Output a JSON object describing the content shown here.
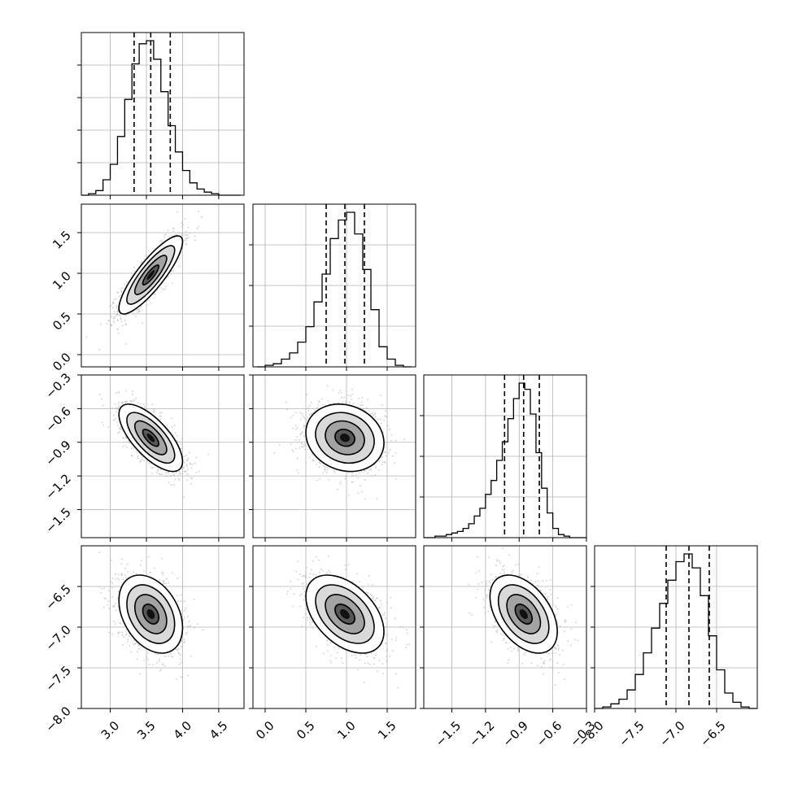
{
  "chart_data": {
    "type": "corner",
    "title": "",
    "grid": true,
    "n_params": 4,
    "params": [
      {
        "xlim": [
          2.6,
          4.85
        ],
        "ylim": [
          0,
          1.0
        ],
        "xticks": [
          "3.0",
          "3.5",
          "4.0",
          "4.5"
        ],
        "xtick_values": [
          3.0,
          3.5,
          4.0,
          4.5
        ],
        "hist_yticks": 4,
        "quantiles": [
          3.33,
          3.56,
          3.83
        ],
        "mean": 3.56,
        "sd": 0.22
      },
      {
        "xlim": [
          -0.15,
          1.85
        ],
        "ylim": [
          -0.15,
          1.85
        ],
        "xticks": [
          "0.0",
          "0.5",
          "1.0",
          "1.5"
        ],
        "xtick_values": [
          0.0,
          0.5,
          1.0,
          1.5
        ],
        "yticks": [
          "0.0",
          "0.5",
          "1.0",
          "1.5"
        ],
        "ytick_values": [
          0.0,
          0.5,
          1.0,
          1.5
        ],
        "hist_yticks": 3,
        "quantiles": [
          0.75,
          0.98,
          1.22
        ],
        "mean": 0.98,
        "sd": 0.24
      },
      {
        "xlim": [
          -1.75,
          -0.3
        ],
        "ylim": [
          -1.75,
          -0.3
        ],
        "xticks": [
          "−1.5",
          "−1.2",
          "−0.9",
          "−0.6",
          "−0.3"
        ],
        "xtick_values": [
          -1.5,
          -1.2,
          -0.9,
          -0.6,
          -0.3
        ],
        "yticks": [
          "−0.3",
          "−0.6",
          "−0.9",
          "−1.2",
          "−1.5"
        ],
        "ytick_values": [
          -0.3,
          -0.6,
          -0.9,
          -1.2,
          -1.5
        ],
        "hist_yticks": 3,
        "quantiles": [
          -1.03,
          -0.86,
          -0.72
        ],
        "mean": -0.86,
        "sd": 0.15
      },
      {
        "xlim": [
          -8.0,
          -6.0
        ],
        "ylim": [
          -8.0,
          -6.0
        ],
        "xticks": [
          "−8.0",
          "−7.5",
          "−7.0",
          "−6.5"
        ],
        "xtick_values": [
          -8.0,
          -7.5,
          -7.0,
          -6.5
        ],
        "yticks": [
          "−6.5",
          "−7.0",
          "−7.5",
          "−8.0"
        ],
        "ytick_values": [
          -6.5,
          -7.0,
          -7.5,
          -8.0
        ],
        "hist_yticks": 3,
        "quantiles": [
          -7.12,
          -6.84,
          -6.59
        ],
        "mean": -6.84,
        "sd": 0.24
      }
    ],
    "histograms": [
      {
        "param": 0,
        "bin_edges": [
          2.6,
          2.7,
          2.8,
          2.9,
          3.0,
          3.1,
          3.2,
          3.3,
          3.4,
          3.5,
          3.6,
          3.7,
          3.8,
          3.9,
          4.0,
          4.1,
          4.2,
          4.3,
          4.4,
          4.5,
          4.6,
          4.7,
          4.8
        ],
        "counts": [
          0.0,
          0.01,
          0.03,
          0.1,
          0.2,
          0.38,
          0.62,
          0.85,
          0.98,
          1.0,
          0.88,
          0.67,
          0.45,
          0.28,
          0.16,
          0.08,
          0.04,
          0.02,
          0.01,
          0.0,
          0.0,
          0.0
        ]
      },
      {
        "param": 1,
        "bin_edges": [
          -0.1,
          0.0,
          0.1,
          0.2,
          0.3,
          0.4,
          0.5,
          0.6,
          0.7,
          0.8,
          0.9,
          1.0,
          1.1,
          1.2,
          1.3,
          1.4,
          1.5,
          1.6,
          1.7,
          1.8
        ],
        "counts": [
          0.0,
          0.01,
          0.02,
          0.05,
          0.09,
          0.16,
          0.26,
          0.42,
          0.6,
          0.83,
          0.95,
          1.0,
          0.86,
          0.63,
          0.37,
          0.13,
          0.05,
          0.01,
          0.0
        ]
      },
      {
        "param": 2,
        "bin_edges": [
          -1.75,
          -1.7,
          -1.65,
          -1.6,
          -1.55,
          -1.5,
          -1.45,
          -1.4,
          -1.35,
          -1.3,
          -1.25,
          -1.2,
          -1.15,
          -1.1,
          -1.05,
          -1.0,
          -0.95,
          -0.9,
          -0.85,
          -0.8,
          -0.75,
          -0.7,
          -0.65,
          -0.6,
          -0.55,
          -0.5,
          -0.45,
          -0.4,
          -0.35,
          -0.3
        ],
        "counts": [
          0.0,
          0.0,
          0.01,
          0.01,
          0.02,
          0.03,
          0.04,
          0.06,
          0.09,
          0.14,
          0.19,
          0.28,
          0.37,
          0.5,
          0.62,
          0.77,
          0.9,
          1.0,
          0.96,
          0.8,
          0.55,
          0.32,
          0.16,
          0.06,
          0.02,
          0.01,
          0.0,
          0.0,
          0.0
        ]
      },
      {
        "param": 3,
        "bin_edges": [
          -8.0,
          -7.9,
          -7.8,
          -7.7,
          -7.6,
          -7.5,
          -7.4,
          -7.3,
          -7.2,
          -7.1,
          -7.0,
          -6.9,
          -6.8,
          -6.7,
          -6.6,
          -6.5,
          -6.4,
          -6.3,
          -6.2,
          -6.1,
          -6.0
        ],
        "counts": [
          0.0,
          0.01,
          0.03,
          0.06,
          0.12,
          0.22,
          0.36,
          0.52,
          0.68,
          0.83,
          0.95,
          1.0,
          0.91,
          0.73,
          0.47,
          0.25,
          0.1,
          0.04,
          0.01,
          0.0
        ]
      }
    ],
    "correlations": [
      {
        "x": 0,
        "y": 1,
        "r": 0.85
      },
      {
        "x": 0,
        "y": 2,
        "r": -0.7
      },
      {
        "x": 1,
        "y": 2,
        "r": -0.15
      },
      {
        "x": 0,
        "y": 3,
        "r": -0.35
      },
      {
        "x": 1,
        "y": 3,
        "r": -0.45
      },
      {
        "x": 2,
        "y": 3,
        "r": -0.45
      }
    ]
  },
  "style": {
    "line_color": "#000000",
    "point_color": "#b9b9b9",
    "grid_color": "#b0b0b0"
  }
}
